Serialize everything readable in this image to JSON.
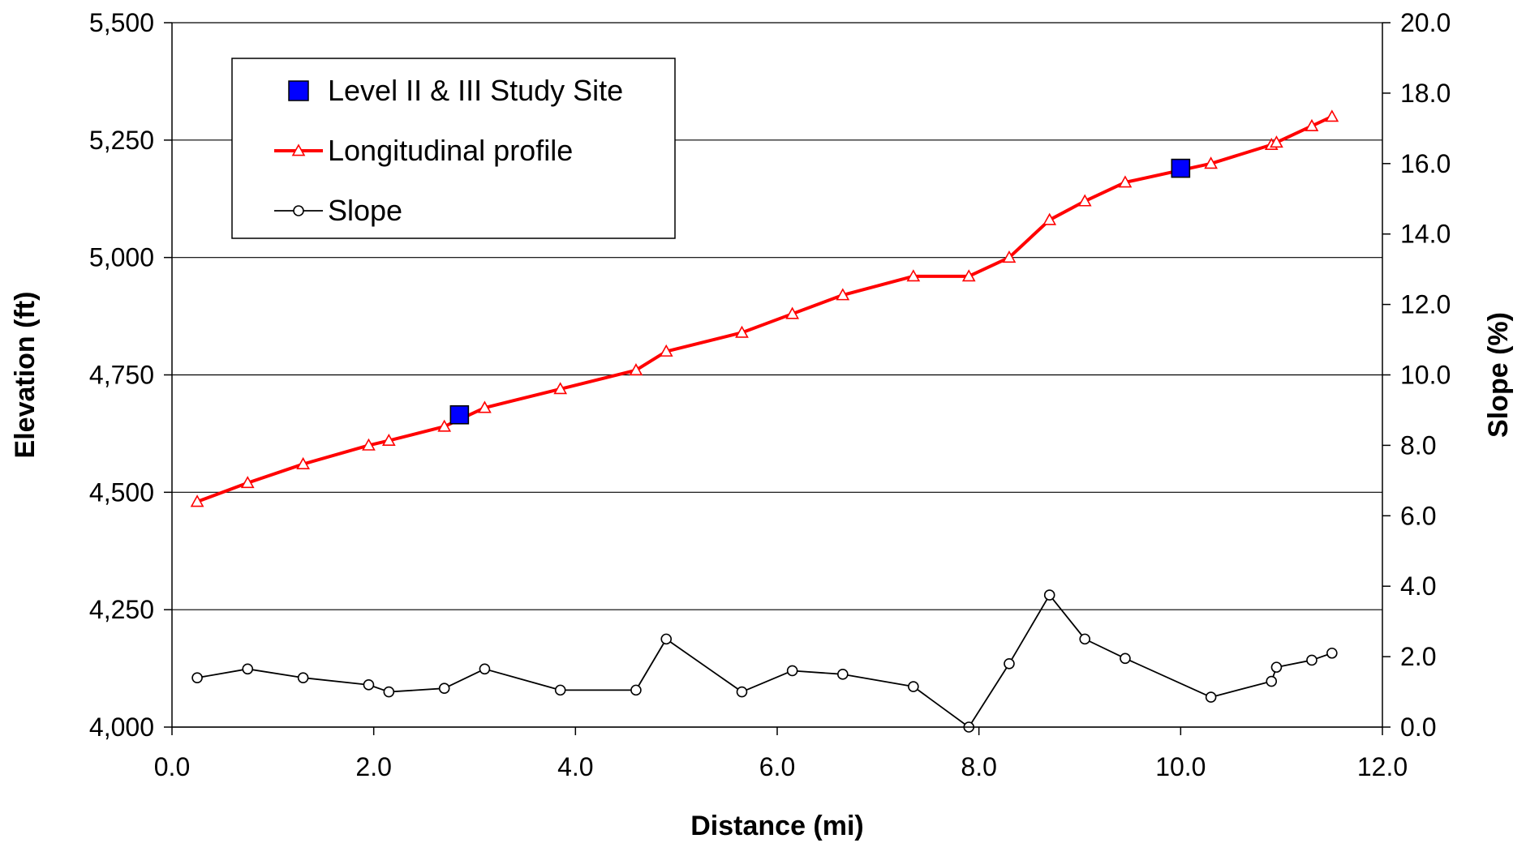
{
  "chart_data": {
    "type": "line",
    "title": "",
    "xlabel": "Distance (mi)",
    "ylabel": "Elevation (ft)",
    "y2label": "Slope (%)",
    "xlim": [
      0,
      12
    ],
    "ylim": [
      4000,
      5500
    ],
    "y2lim": [
      0,
      20
    ],
    "x_ticks": [
      "0.0",
      "2.0",
      "4.0",
      "6.0",
      "8.0",
      "10.0",
      "12.0"
    ],
    "y_ticks": [
      "4,000",
      "4,250",
      "4,500",
      "4,750",
      "5,000",
      "5,250",
      "5,500"
    ],
    "y2_ticks": [
      "0.0",
      "2.0",
      "4.0",
      "6.0",
      "8.0",
      "10.0",
      "12.0",
      "14.0",
      "16.0",
      "18.0",
      "20.0"
    ],
    "grid": "horizontal major gridlines on primary axis",
    "legend_position": "top-left",
    "series": [
      {
        "name": "Level II & III Study Site",
        "axis": "primary",
        "style": "marker",
        "marker": "square",
        "color": "#0000ff",
        "x": [
          2.85,
          10.0
        ],
        "y": [
          4665,
          5190
        ]
      },
      {
        "name": "Longitudinal profile",
        "axis": "primary",
        "style": "line",
        "marker": "triangle",
        "color": "#ff0000",
        "x": [
          0.25,
          0.75,
          1.3,
          1.95,
          2.15,
          2.7,
          3.1,
          3.85,
          4.6,
          4.9,
          5.65,
          6.15,
          6.65,
          7.35,
          7.9,
          8.3,
          8.7,
          9.05,
          9.45,
          10.3,
          10.9,
          10.95,
          11.3,
          11.5
        ],
        "y": [
          4480,
          4520,
          4560,
          4600,
          4610,
          4640,
          4680,
          4720,
          4760,
          4800,
          4840,
          4880,
          4920,
          4960,
          4960,
          5000,
          5080,
          5120,
          5160,
          5200,
          5240,
          5245,
          5280,
          5300
        ]
      },
      {
        "name": "Slope",
        "axis": "secondary",
        "style": "line",
        "marker": "circle",
        "color": "#000000",
        "x": [
          0.25,
          0.75,
          1.3,
          1.95,
          2.15,
          2.7,
          3.1,
          3.85,
          4.6,
          4.9,
          5.65,
          6.15,
          6.65,
          7.35,
          7.9,
          8.3,
          8.7,
          9.05,
          9.45,
          10.3,
          10.9,
          10.95,
          11.3,
          11.5
        ],
        "y": [
          1.4,
          1.65,
          1.4,
          1.2,
          1.0,
          1.1,
          1.65,
          1.05,
          1.05,
          2.5,
          1.0,
          1.6,
          1.5,
          1.15,
          0.0,
          1.8,
          3.75,
          2.5,
          1.95,
          0.85,
          1.3,
          1.7,
          1.9,
          2.1
        ]
      }
    ]
  }
}
